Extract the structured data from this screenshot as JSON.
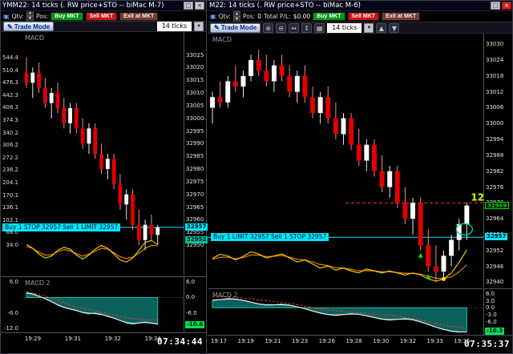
{
  "icons": {
    "close": "×",
    "restore": "□",
    "up": "▲",
    "down": "▼",
    "dropdown": "▼",
    "pencil": "✎",
    "zoom_in": "⊕",
    "zoom_out": "⊖",
    "arrows_h": "↔",
    "arrows_v": "↕",
    "grid": "▦",
    "link": "▣"
  },
  "left_panel": {
    "title": "YMM22: 14 ticks (.   RW price+STO -- biMac M-7)",
    "trade_bar": {
      "qty_label": "Qtv:",
      "pos_label": "Pos:",
      "buy": "Buy MKT",
      "sell": "Sell MKT",
      "exit": "Exit at MKT"
    },
    "toolbar": {
      "trade_mode": "Trade Mode",
      "interval": "14 ticks"
    },
    "study_label": "MACD",
    "macd2_label": "MACD 2",
    "order_label": "Buy 1 STOP 32957  Sell 1 LIMIT 32957",
    "clock": "07:34:44",
    "time_labels": [
      "19:29",
      "19:31",
      "19:32",
      "19:34"
    ],
    "left_axis_labels": [
      "544.4",
      "510.4",
      "476.3",
      "442.3",
      "408.3",
      "374.3",
      "340.2",
      "306.2",
      "272.2",
      "238.2",
      "204.1",
      "170.1",
      "136.1",
      "102.1",
      "68.0",
      "34.0"
    ],
    "chart_data": {
      "type": "candlestick",
      "price_range": [
        32938,
        33034
      ],
      "price_ticks": [
        33025,
        33020,
        33015,
        33010,
        33005,
        33000,
        32995,
        32990,
        32985,
        32980,
        32975,
        32970,
        32965,
        32960,
        32955,
        32950
      ],
      "order_price": 32957,
      "highlight_prices": [
        {
          "price": 32957,
          "label": "32957",
          "bg": "#00e5ff",
          "fg": "#001018"
        },
        {
          "price": 32952,
          "label": "32952",
          "bg": "#00c0a0",
          "fg": "#001018"
        }
      ],
      "candles": [
        [
          33018,
          33024,
          33012,
          33014
        ],
        [
          33014,
          33020,
          33008,
          33018
        ],
        [
          33018,
          33022,
          33010,
          33012
        ],
        [
          33012,
          33016,
          33004,
          33006
        ],
        [
          33006,
          33012,
          33000,
          33010
        ],
        [
          33010,
          33014,
          33002,
          33004
        ],
        [
          33004,
          33008,
          32996,
          32998
        ],
        [
          32998,
          33006,
          32994,
          33004
        ],
        [
          33004,
          33006,
          32994,
          32996
        ],
        [
          32996,
          33000,
          32988,
          32990
        ],
        [
          32990,
          32998,
          32986,
          32996
        ],
        [
          32996,
          32998,
          32984,
          32986
        ],
        [
          32986,
          32990,
          32978,
          32980
        ],
        [
          32980,
          32986,
          32976,
          32984
        ],
        [
          32984,
          32986,
          32972,
          32974
        ],
        [
          32974,
          32978,
          32964,
          32966
        ],
        [
          32966,
          32972,
          32960,
          32970
        ],
        [
          32970,
          32972,
          32956,
          32958
        ],
        [
          32958,
          32964,
          32950,
          32952
        ],
        [
          32952,
          32960,
          32948,
          32958
        ],
        [
          32958,
          32962,
          32952,
          32954
        ],
        [
          32954,
          32958,
          32950,
          32957
        ]
      ],
      "overlay_fast": [
        0.35,
        0.15,
        -0.15,
        -0.35,
        -0.25,
        0.05,
        0.2,
        0.1,
        -0.2,
        -0.4,
        -0.2,
        0.1,
        0.3,
        0.15,
        -0.15,
        -0.45,
        -0.55,
        -0.35,
        0.05,
        0.45,
        0.55,
        0.35
      ],
      "overlay_slow": [
        0.25,
        0.15,
        -0.05,
        -0.2,
        -0.18,
        -0.02,
        0.08,
        0.02,
        -0.12,
        -0.25,
        -0.15,
        0.0,
        0.15,
        0.1,
        -0.08,
        -0.28,
        -0.38,
        -0.3,
        -0.1,
        0.15,
        0.3,
        0.28
      ],
      "annotations": {},
      "macd2": {
        "range": [
          -14,
          8
        ],
        "right_ticks": [
          "6.0",
          "0.0",
          "-6.0"
        ],
        "left_ticks": [
          "6.0",
          "-6.0",
          "-12.0"
        ],
        "highlight": {
          "value": "-10.6",
          "bg": "#00e050"
        },
        "hist": [
          2,
          1.5,
          0.5,
          -0.5,
          -1.5,
          -3,
          -4,
          -4.5,
          -5,
          -6,
          -6.5,
          -6,
          -6.5,
          -7.5,
          -8,
          -9,
          -10,
          -10.5,
          -10,
          -9.5,
          -10,
          -10.6
        ]
      }
    }
  },
  "right_panel": {
    "title": "M22: 14 ticks (.   RW price+STO -- biMac M-6)",
    "trade_bar": {
      "qty_label": "Qtv:",
      "pos_label": "Pos:",
      "pos_value": "0",
      "pl_label": "Total P/L:",
      "pl_value": "$0.00",
      "buy": "Buy MKT",
      "sell": "Sell MKT",
      "exit": "Exit at MKT"
    },
    "toolbar": {
      "trade_mode": "Trade Mode",
      "interval": "14 ticks"
    },
    "study_label": "MACD",
    "macd2_label": "MACD 2",
    "order_label": "Buy 1 LIMIT 32957  Sell 1 STOP 32957",
    "clock": "07:35:37",
    "time_labels": [
      "19:17",
      "19:19",
      "19:21",
      "19:23",
      "19:26",
      "19:28",
      "19:30",
      "19:32",
      "19:33",
      "19:35"
    ],
    "chart_data": {
      "type": "candlestick",
      "price_range": [
        32938,
        33034
      ],
      "price_ticks": [
        33030,
        33024,
        33018,
        33012,
        33006,
        33000,
        32994,
        32988,
        32982,
        32976,
        32970,
        32964,
        32958,
        32952,
        32946,
        32940
      ],
      "order_price": 32957,
      "avg_price": 32970,
      "highlight_prices": [
        {
          "price": 32969,
          "label": "32969",
          "border": "#00e000"
        },
        {
          "price": 32957,
          "label": "32957",
          "bg": "#00e5ff",
          "fg": "#001018"
        }
      ],
      "candles": [
        [
          33006,
          33012,
          33000,
          33010
        ],
        [
          33010,
          33016,
          33006,
          33008
        ],
        [
          33008,
          33018,
          33006,
          33016
        ],
        [
          33016,
          33022,
          33012,
          33014
        ],
        [
          33014,
          33020,
          33010,
          33018
        ],
        [
          33018,
          33026,
          33016,
          33024
        ],
        [
          33024,
          33028,
          33018,
          33020
        ],
        [
          33020,
          33026,
          33014,
          33016
        ],
        [
          33016,
          33024,
          33012,
          33022
        ],
        [
          33022,
          33026,
          33016,
          33018
        ],
        [
          33018,
          33022,
          33010,
          33012
        ],
        [
          33012,
          33020,
          33008,
          33018
        ],
        [
          33018,
          33022,
          33008,
          33010
        ],
        [
          33010,
          33014,
          33002,
          33004
        ],
        [
          33004,
          33012,
          33000,
          33010
        ],
        [
          33010,
          33014,
          33000,
          33002
        ],
        [
          33002,
          33008,
          32994,
          32996
        ],
        [
          32996,
          33004,
          32992,
          33002
        ],
        [
          33002,
          33004,
          32990,
          32992
        ],
        [
          32992,
          32998,
          32984,
          32986
        ],
        [
          32986,
          32994,
          32982,
          32992
        ],
        [
          32992,
          32994,
          32980,
          32982
        ],
        [
          32982,
          32988,
          32974,
          32976
        ],
        [
          32976,
          32984,
          32972,
          32982
        ],
        [
          32982,
          32984,
          32968,
          32970
        ],
        [
          32970,
          32976,
          32962,
          32964
        ],
        [
          32964,
          32972,
          32958,
          32970
        ],
        [
          32970,
          32972,
          32952,
          32954
        ],
        [
          32954,
          32960,
          32944,
          32946
        ],
        [
          32946,
          32954,
          32940,
          32944
        ],
        [
          32944,
          32952,
          32942,
          32950
        ],
        [
          32950,
          32958,
          32946,
          32956
        ],
        [
          32956,
          32964,
          32952,
          32962
        ],
        [
          32962,
          32970,
          32956,
          32969
        ]
      ],
      "overlay_fast": [
        0.2,
        0.4,
        0.32,
        0.12,
        0.3,
        0.52,
        0.42,
        0.22,
        0.32,
        0.42,
        0.22,
        0.02,
        0.12,
        -0.08,
        -0.28,
        -0.18,
        -0.38,
        -0.28,
        -0.42,
        -0.52,
        -0.32,
        -0.42,
        -0.52,
        -0.42,
        -0.52,
        -0.62,
        -0.52,
        -0.62,
        -0.82,
        -0.92,
        -0.82,
        -0.52,
        0.0,
        0.62
      ],
      "overlay_slow": [
        0.15,
        0.25,
        0.26,
        0.18,
        0.24,
        0.36,
        0.36,
        0.28,
        0.3,
        0.34,
        0.26,
        0.16,
        0.12,
        0.02,
        -0.1,
        -0.16,
        -0.26,
        -0.28,
        -0.34,
        -0.42,
        -0.4,
        -0.42,
        -0.46,
        -0.46,
        -0.5,
        -0.54,
        -0.54,
        -0.58,
        -0.68,
        -0.78,
        -0.8,
        -0.72,
        -0.46,
        -0.12
      ],
      "annotations": {
        "profit_ticks": "12",
        "profit_label_price": 32972,
        "ellipse_price": 32960,
        "signal_dot_index": 30,
        "buy_arrows": [
          27,
          28
        ]
      },
      "macd2": {
        "range": [
          -12,
          8
        ],
        "right_ticks": [
          "6.0",
          "3.0",
          "0.0",
          "-3.0",
          "-6.0"
        ],
        "left_ticks": [],
        "highlight": {
          "value": "-10.3",
          "bg": "#00e050"
        },
        "hist": [
          3,
          3.5,
          4,
          3.8,
          3.2,
          2.4,
          1.6,
          1.0,
          1.2,
          1.6,
          1.2,
          0.4,
          -0.4,
          -1.4,
          -2.4,
          -3.0,
          -3.4,
          -3.0,
          -2.4,
          -2.8,
          -3.4,
          -4.2,
          -5.0,
          -5.4,
          -5.0,
          -4.6,
          -5.0,
          -6.0,
          -7.2,
          -8.4,
          -9.4,
          -10.2,
          -10.6,
          -10.3
        ]
      }
    }
  }
}
